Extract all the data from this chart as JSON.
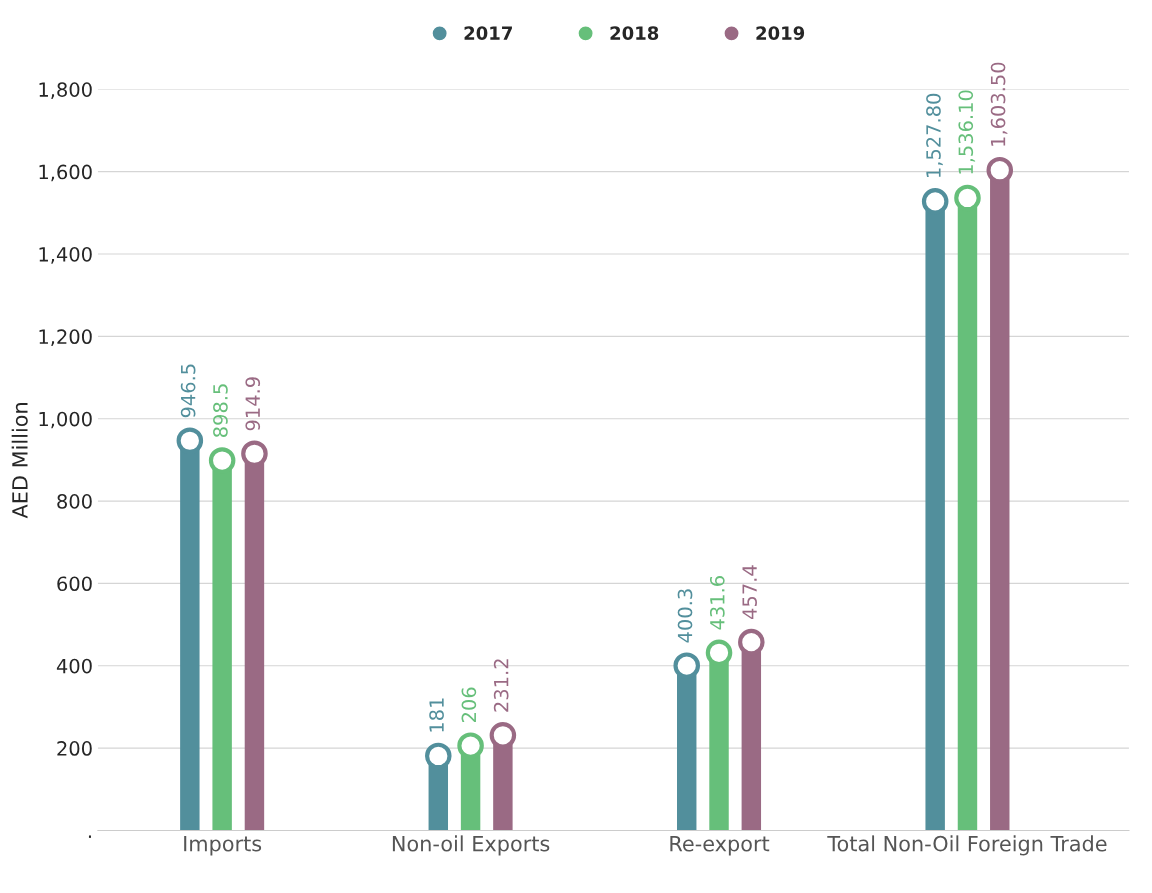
{
  "chart_data": {
    "type": "lollipop",
    "ylabel": "AED Million",
    "categories": [
      "Imports",
      "Non-oil Exports",
      "Re-export",
      "Total Non-Oil Foreign Trade"
    ],
    "series": [
      {
        "name": "2017",
        "color": "#528f9c",
        "values": [
          946.5,
          181,
          400.3,
          1527.8
        ],
        "value_labels": [
          "946.5",
          "181",
          "400.3",
          "1,527.80"
        ]
      },
      {
        "name": "2018",
        "color": "#66bf7a",
        "values": [
          898.5,
          206,
          431.6,
          1536.1
        ],
        "value_labels": [
          "898.5",
          "206",
          "431.6",
          "1,536.10"
        ]
      },
      {
        "name": "2019",
        "color": "#9a6a84",
        "values": [
          914.9,
          231.2,
          457.4,
          1603.5
        ],
        "value_labels": [
          "914.9",
          "231.2",
          "457.4",
          "1,603.50"
        ]
      }
    ],
    "ylim": [
      0,
      1800
    ],
    "yticks": [
      {
        "value": 0,
        "label": "."
      },
      {
        "value": 200,
        "label": "200"
      },
      {
        "value": 400,
        "label": "400"
      },
      {
        "value": 600,
        "label": "600"
      },
      {
        "value": 800,
        "label": "800"
      },
      {
        "value": 1000,
        "label": "1,000"
      },
      {
        "value": 1200,
        "label": "1,200"
      },
      {
        "value": 1400,
        "label": "1,400"
      },
      {
        "value": 1600,
        "label": "1,600"
      },
      {
        "value": 1800,
        "label": "1,800"
      }
    ],
    "grid": "y",
    "legend": "top",
    "marker": "circle"
  }
}
